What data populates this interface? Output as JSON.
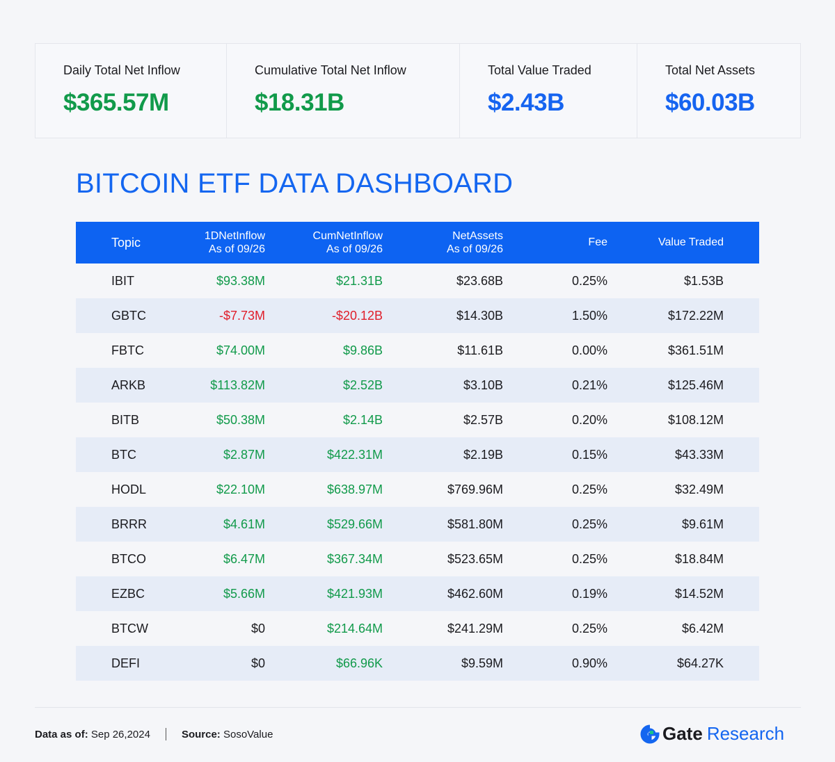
{
  "summary": [
    {
      "label": "Daily Total Net Inflow",
      "value": "$365.57M",
      "color": "#119a4a"
    },
    {
      "label": "Cumulative Total Net Inflow",
      "value": "$18.31B",
      "color": "#119a4a"
    },
    {
      "label": "Total Value Traded",
      "value": "$2.43B",
      "color": "#1664f0"
    },
    {
      "label": "Total Net Assets",
      "value": "$60.03B",
      "color": "#1664f0"
    }
  ],
  "title": "BITCOIN ETF DATA DASHBOARD",
  "table": {
    "headers": {
      "topic": "Topic",
      "inflow_1d": "1DNetInflow",
      "inflow_1d_sub": "As of 09/26",
      "cum_inflow": "CumNetInflow",
      "cum_inflow_sub": "As of 09/26",
      "net_assets": "NetAssets",
      "net_assets_sub": "As of 09/26",
      "fee": "Fee",
      "value_traded": "Value Traded"
    },
    "rows": [
      {
        "topic": "IBIT",
        "inflow_1d": "$93.38M",
        "cum_inflow": "$21.31B",
        "net_assets": "$23.68B",
        "fee": "0.25%",
        "value_traded": "$1.53B"
      },
      {
        "topic": "GBTC",
        "inflow_1d": "-$7.73M",
        "cum_inflow": "-$20.12B",
        "net_assets": "$14.30B",
        "fee": "1.50%",
        "value_traded": "$172.22M"
      },
      {
        "topic": "FBTC",
        "inflow_1d": "$74.00M",
        "cum_inflow": "$9.86B",
        "net_assets": "$11.61B",
        "fee": "0.00%",
        "value_traded": "$361.51M"
      },
      {
        "topic": "ARKB",
        "inflow_1d": "$113.82M",
        "cum_inflow": "$2.52B",
        "net_assets": "$3.10B",
        "fee": "0.21%",
        "value_traded": "$125.46M"
      },
      {
        "topic": "BITB",
        "inflow_1d": "$50.38M",
        "cum_inflow": "$2.14B",
        "net_assets": "$2.57B",
        "fee": "0.20%",
        "value_traded": "$108.12M"
      },
      {
        "topic": "BTC",
        "inflow_1d": "$2.87M",
        "cum_inflow": "$422.31M",
        "net_assets": "$2.19B",
        "fee": "0.15%",
        "value_traded": "$43.33M"
      },
      {
        "topic": "HODL",
        "inflow_1d": "$22.10M",
        "cum_inflow": "$638.97M",
        "net_assets": "$769.96M",
        "fee": "0.25%",
        "value_traded": "$32.49M"
      },
      {
        "topic": "BRRR",
        "inflow_1d": "$4.61M",
        "cum_inflow": "$529.66M",
        "net_assets": "$581.80M",
        "fee": "0.25%",
        "value_traded": "$9.61M"
      },
      {
        "topic": "BTCO",
        "inflow_1d": "$6.47M",
        "cum_inflow": "$367.34M",
        "net_assets": "$523.65M",
        "fee": "0.25%",
        "value_traded": "$18.84M"
      },
      {
        "topic": "EZBC",
        "inflow_1d": "$5.66M",
        "cum_inflow": "$421.93M",
        "net_assets": "$462.60M",
        "fee": "0.19%",
        "value_traded": "$14.52M"
      },
      {
        "topic": "BTCW",
        "inflow_1d": "$0",
        "cum_inflow": "$214.64M",
        "net_assets": "$241.29M",
        "fee": "0.25%",
        "value_traded": "$6.42M"
      },
      {
        "topic": "DEFI",
        "inflow_1d": "$0",
        "cum_inflow": "$66.96K",
        "net_assets": "$9.59M",
        "fee": "0.90%",
        "value_traded": "$64.27K"
      }
    ]
  },
  "footer": {
    "data_as_of_label": "Data as of:",
    "data_as_of_value": "Sep 26,2024",
    "source_label": "Source:",
    "source_value": "SosoValue",
    "brand_gate": "Gate",
    "brand_research": "Research",
    "brand_icon": "gate-logo-icon"
  },
  "colors": {
    "accent": "#1466f0",
    "header_bg": "#0d63f2",
    "positive": "#119a4a",
    "negative": "#e01e2a",
    "row_alt": "#e6ecf7"
  }
}
